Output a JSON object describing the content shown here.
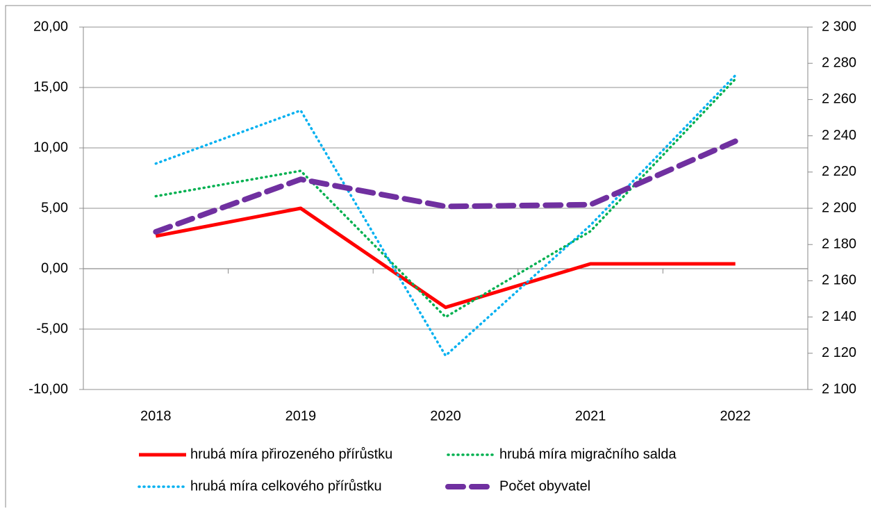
{
  "chart_data": {
    "type": "line",
    "categories": [
      "2018",
      "2019",
      "2020",
      "2021",
      "2022"
    ],
    "series": [
      {
        "name": "hrubá míra přirozeného přírůstku",
        "color": "#ff0000",
        "style": "solid",
        "values": [
          2.7,
          5.0,
          -3.2,
          0.4,
          0.4
        ]
      },
      {
        "name": "hrubá míra migračního salda",
        "color": "#00b050",
        "style": "dotted",
        "values": [
          6.0,
          8.1,
          -4.0,
          3.1,
          15.7
        ]
      },
      {
        "name": "hrubá míra celkového přírůstku",
        "color": "#00b0f0",
        "style": "dotted",
        "values": [
          8.7,
          13.1,
          -7.2,
          3.6,
          16.0
        ]
      },
      {
        "name": "Počet obyvatel",
        "color": "#7030a0",
        "style": "dashed",
        "axis": "y2",
        "values": [
          2187,
          2216,
          2201,
          2202,
          2237
        ]
      }
    ],
    "ylim": [
      -10,
      20
    ],
    "yticks": [
      {
        "value": -10,
        "label": "-10,00"
      },
      {
        "value": -5,
        "label": "-5,00"
      },
      {
        "value": 0,
        "label": "0,00"
      },
      {
        "value": 5,
        "label": "5,00"
      },
      {
        "value": 10,
        "label": "10,00"
      },
      {
        "value": 15,
        "label": "15,00"
      },
      {
        "value": 20,
        "label": "20,00"
      }
    ],
    "y2lim": [
      2100,
      2300
    ],
    "y2ticks": [
      {
        "value": 2100,
        "label": "2 100"
      },
      {
        "value": 2120,
        "label": "2 120"
      },
      {
        "value": 2140,
        "label": "2 140"
      },
      {
        "value": 2160,
        "label": "2 160"
      },
      {
        "value": 2180,
        "label": "2 180"
      },
      {
        "value": 2200,
        "label": "2 200"
      },
      {
        "value": 2220,
        "label": "2 220"
      },
      {
        "value": 2240,
        "label": "2 240"
      },
      {
        "value": 2260,
        "label": "2 260"
      },
      {
        "value": 2280,
        "label": "2 280"
      },
      {
        "value": 2300,
        "label": "2 300"
      }
    ],
    "grid": true
  }
}
